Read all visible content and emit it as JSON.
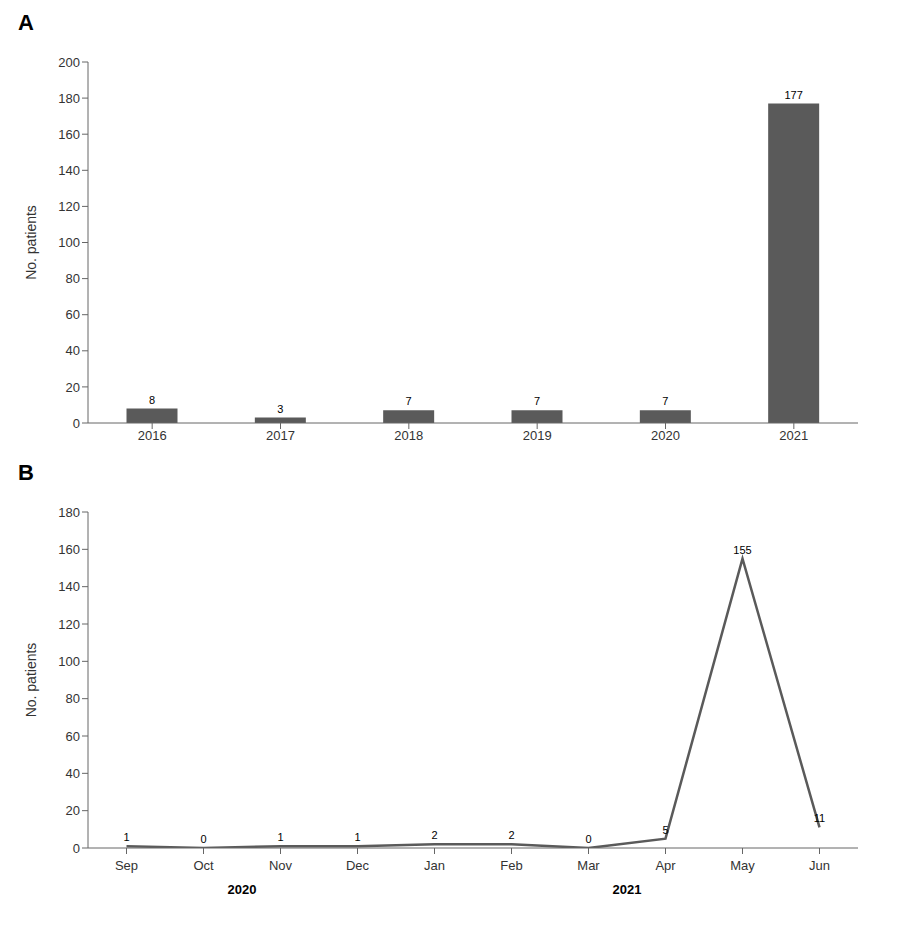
{
  "chart_data": [
    {
      "type": "bar",
      "title": "A",
      "categories": [
        "2016",
        "2017",
        "2018",
        "2019",
        "2020",
        "2021"
      ],
      "values": [
        8,
        3,
        7,
        7,
        7,
        177
      ],
      "color": "#5a5a5a",
      "ylabel": "No. patients",
      "ylim": [
        0,
        200
      ],
      "yticks": [
        0,
        20,
        40,
        60,
        80,
        100,
        120,
        140,
        160,
        180,
        200
      ],
      "grid": false,
      "data_labels": true
    },
    {
      "type": "line",
      "title": "B",
      "categories": [
        "Sep",
        "Oct",
        "Nov",
        "Dec",
        "Jan",
        "Feb",
        "Mar",
        "Apr",
        "May",
        "Jun"
      ],
      "values": [
        1,
        0,
        1,
        1,
        2,
        2,
        0,
        5,
        155,
        11
      ],
      "color": "#5a5a5a",
      "ylabel": "No. patients",
      "ylim": [
        0,
        180
      ],
      "yticks": [
        0,
        20,
        40,
        60,
        80,
        100,
        120,
        140,
        160,
        180
      ],
      "grid": false,
      "data_labels": true,
      "annotations": [
        {
          "text": "2020",
          "x": [
            "Sep",
            "Dec"
          ]
        },
        {
          "text": "2021",
          "x": [
            "Jan",
            "Jun"
          ]
        }
      ]
    }
  ]
}
